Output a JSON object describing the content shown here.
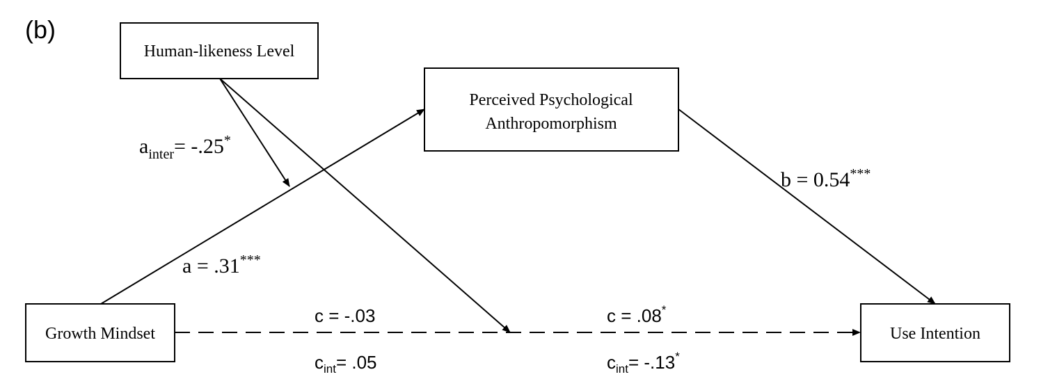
{
  "panel_label": "(b)",
  "nodes": {
    "human_likeness": "Human-likeness Level",
    "perceived_line1": "Perceived Psychological",
    "perceived_line2": "Anthropomorphism",
    "growth_mindset": "Growth Mindset",
    "use_intention": "Use Intention"
  },
  "paths": {
    "a_inter": {
      "base": "a",
      "sub": "inter",
      "value": "= -.25",
      "sig": "*"
    },
    "a": {
      "base": "a",
      "value": " = .31",
      "sig": "***"
    },
    "b": {
      "base": "b",
      "value": " = 0.54",
      "sig": "***"
    },
    "c_left": {
      "base": "c",
      "value": " = -.03",
      "sig": ""
    },
    "c_int_left": {
      "base": "c",
      "sub": "int",
      "value": "= .05",
      "sig": ""
    },
    "c_right": {
      "base": "c",
      "value": " = .08",
      "sig": "*"
    },
    "c_int_right": {
      "base": "c",
      "sub": "int",
      "value": "= -.13",
      "sig": "*"
    }
  }
}
